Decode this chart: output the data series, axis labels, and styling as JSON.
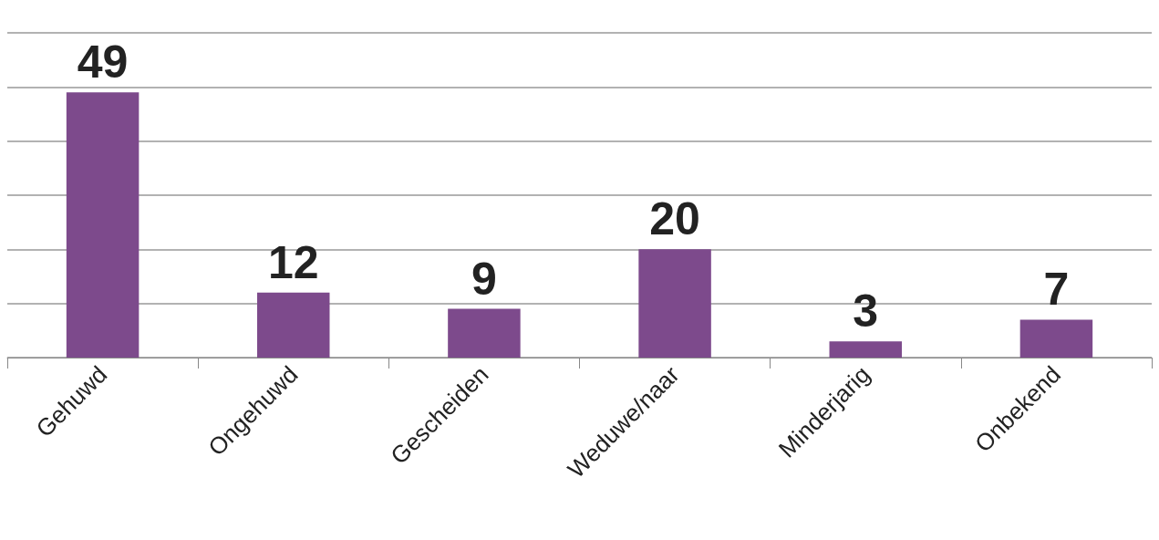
{
  "chart_data": {
    "type": "bar",
    "categories": [
      "Gehuwd",
      "Ongehuwd",
      "Gescheiden",
      "Weduwe/naar",
      "Minderjarig",
      "Onbekend"
    ],
    "values": [
      49,
      12,
      9,
      20,
      3,
      7
    ],
    "color": "#7d4a8c",
    "ylim": [
      0,
      60
    ],
    "yticks": [
      0,
      10,
      20,
      30,
      40,
      50,
      60
    ],
    "grid": "y",
    "tick_labels": "x",
    "data_labels": true
  }
}
